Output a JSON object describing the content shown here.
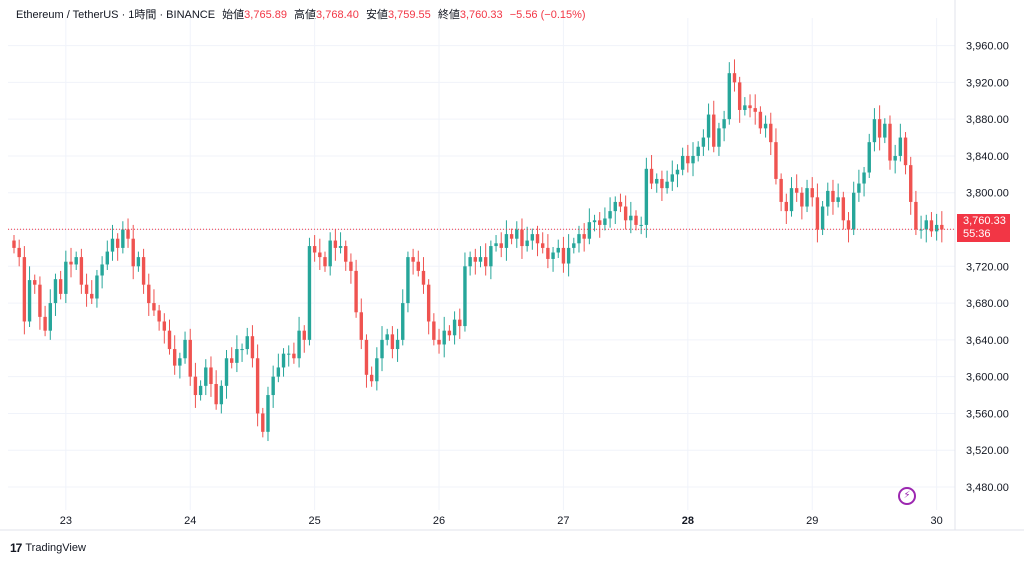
{
  "header": {
    "symbol": "Ethereum / TetherUS · 1時間 · BINANCE",
    "open_label": "始値",
    "open": "3,765.89",
    "high_label": "高値",
    "high": "3,768.40",
    "low_label": "安値",
    "low": "3,759.55",
    "close_label": "終値",
    "close": "3,760.33",
    "change": "−5.56 (−0.15%)"
  },
  "price_label": {
    "price": "3,760.33",
    "countdown": "55:36"
  },
  "logo": {
    "mark": "17",
    "text": "TradingView"
  },
  "icons": {
    "bolt": "lightning-icon"
  },
  "colors": {
    "up": "#26a69a",
    "down": "#ef5350",
    "last": "#f23645",
    "grid": "#f0f3fa"
  },
  "chart_data": {
    "type": "candlestick",
    "title": "Ethereum / TetherUS · 1時間 · BINANCE",
    "y_ticks": [
      3480,
      3520,
      3560,
      3600,
      3640,
      3680,
      3720,
      3760,
      3800,
      3840,
      3880,
      3920,
      3960
    ],
    "y_tick_labels": [
      "3,480.00",
      "3,520.00",
      "3,560.00",
      "3,600.00",
      "3,640.00",
      "3,680.00",
      "3,720.00",
      "",
      "3,800.00",
      "3,840.00",
      "3,880.00",
      "3,920.00",
      "3,960.00"
    ],
    "ylim": [
      3455,
      3990
    ],
    "x_labels": [
      {
        "label": "23",
        "index": 10,
        "bold": false
      },
      {
        "label": "24",
        "index": 34,
        "bold": false
      },
      {
        "label": "25",
        "index": 58,
        "bold": false
      },
      {
        "label": "26",
        "index": 82,
        "bold": false
      },
      {
        "label": "27",
        "index": 106,
        "bold": false
      },
      {
        "label": "28",
        "index": 130,
        "bold": true
      },
      {
        "label": "29",
        "index": 154,
        "bold": false
      },
      {
        "label": "30",
        "index": 178,
        "bold": false
      }
    ],
    "last_price": 3760.33,
    "closes": [
      3740,
      3730,
      3660,
      3705,
      3700,
      3665,
      3650,
      3680,
      3706,
      3690,
      3725,
      3722,
      3730,
      3700,
      3690,
      3685,
      3710,
      3722,
      3736,
      3750,
      3740,
      3760,
      3750,
      3720,
      3730,
      3700,
      3680,
      3672,
      3660,
      3650,
      3630,
      3612,
      3620,
      3640,
      3600,
      3580,
      3590,
      3610,
      3592,
      3570,
      3590,
      3620,
      3615,
      3630,
      3630,
      3644,
      3620,
      3560,
      3540,
      3580,
      3600,
      3610,
      3625,
      3625,
      3620,
      3650,
      3640,
      3742,
      3735,
      3730,
      3720,
      3748,
      3740,
      3742,
      3725,
      3715,
      3670,
      3640,
      3602,
      3595,
      3620,
      3640,
      3646,
      3630,
      3640,
      3680,
      3730,
      3725,
      3715,
      3700,
      3660,
      3640,
      3635,
      3650,
      3645,
      3662,
      3655,
      3720,
      3730,
      3725,
      3730,
      3720,
      3742,
      3745,
      3740,
      3755,
      3750,
      3760,
      3742,
      3748,
      3755,
      3745,
      3740,
      3728,
      3735,
      3740,
      3723,
      3740,
      3745,
      3755,
      3750,
      3768,
      3770,
      3765,
      3772,
      3780,
      3790,
      3785,
      3770,
      3775,
      3765,
      3765,
      3826,
      3810,
      3815,
      3805,
      3812,
      3820,
      3825,
      3840,
      3832,
      3840,
      3850,
      3860,
      3885,
      3850,
      3870,
      3880,
      3930,
      3920,
      3890,
      3895,
      3892,
      3888,
      3870,
      3875,
      3855,
      3815,
      3790,
      3780,
      3805,
      3800,
      3785,
      3805,
      3795,
      3760,
      3785,
      3802,
      3790,
      3795,
      3770,
      3760,
      3800,
      3810,
      3822,
      3855,
      3880,
      3860,
      3875,
      3835,
      3840,
      3860,
      3830,
      3790,
      3760,
      3760,
      3770,
      3758,
      3765,
      3760
    ]
  }
}
